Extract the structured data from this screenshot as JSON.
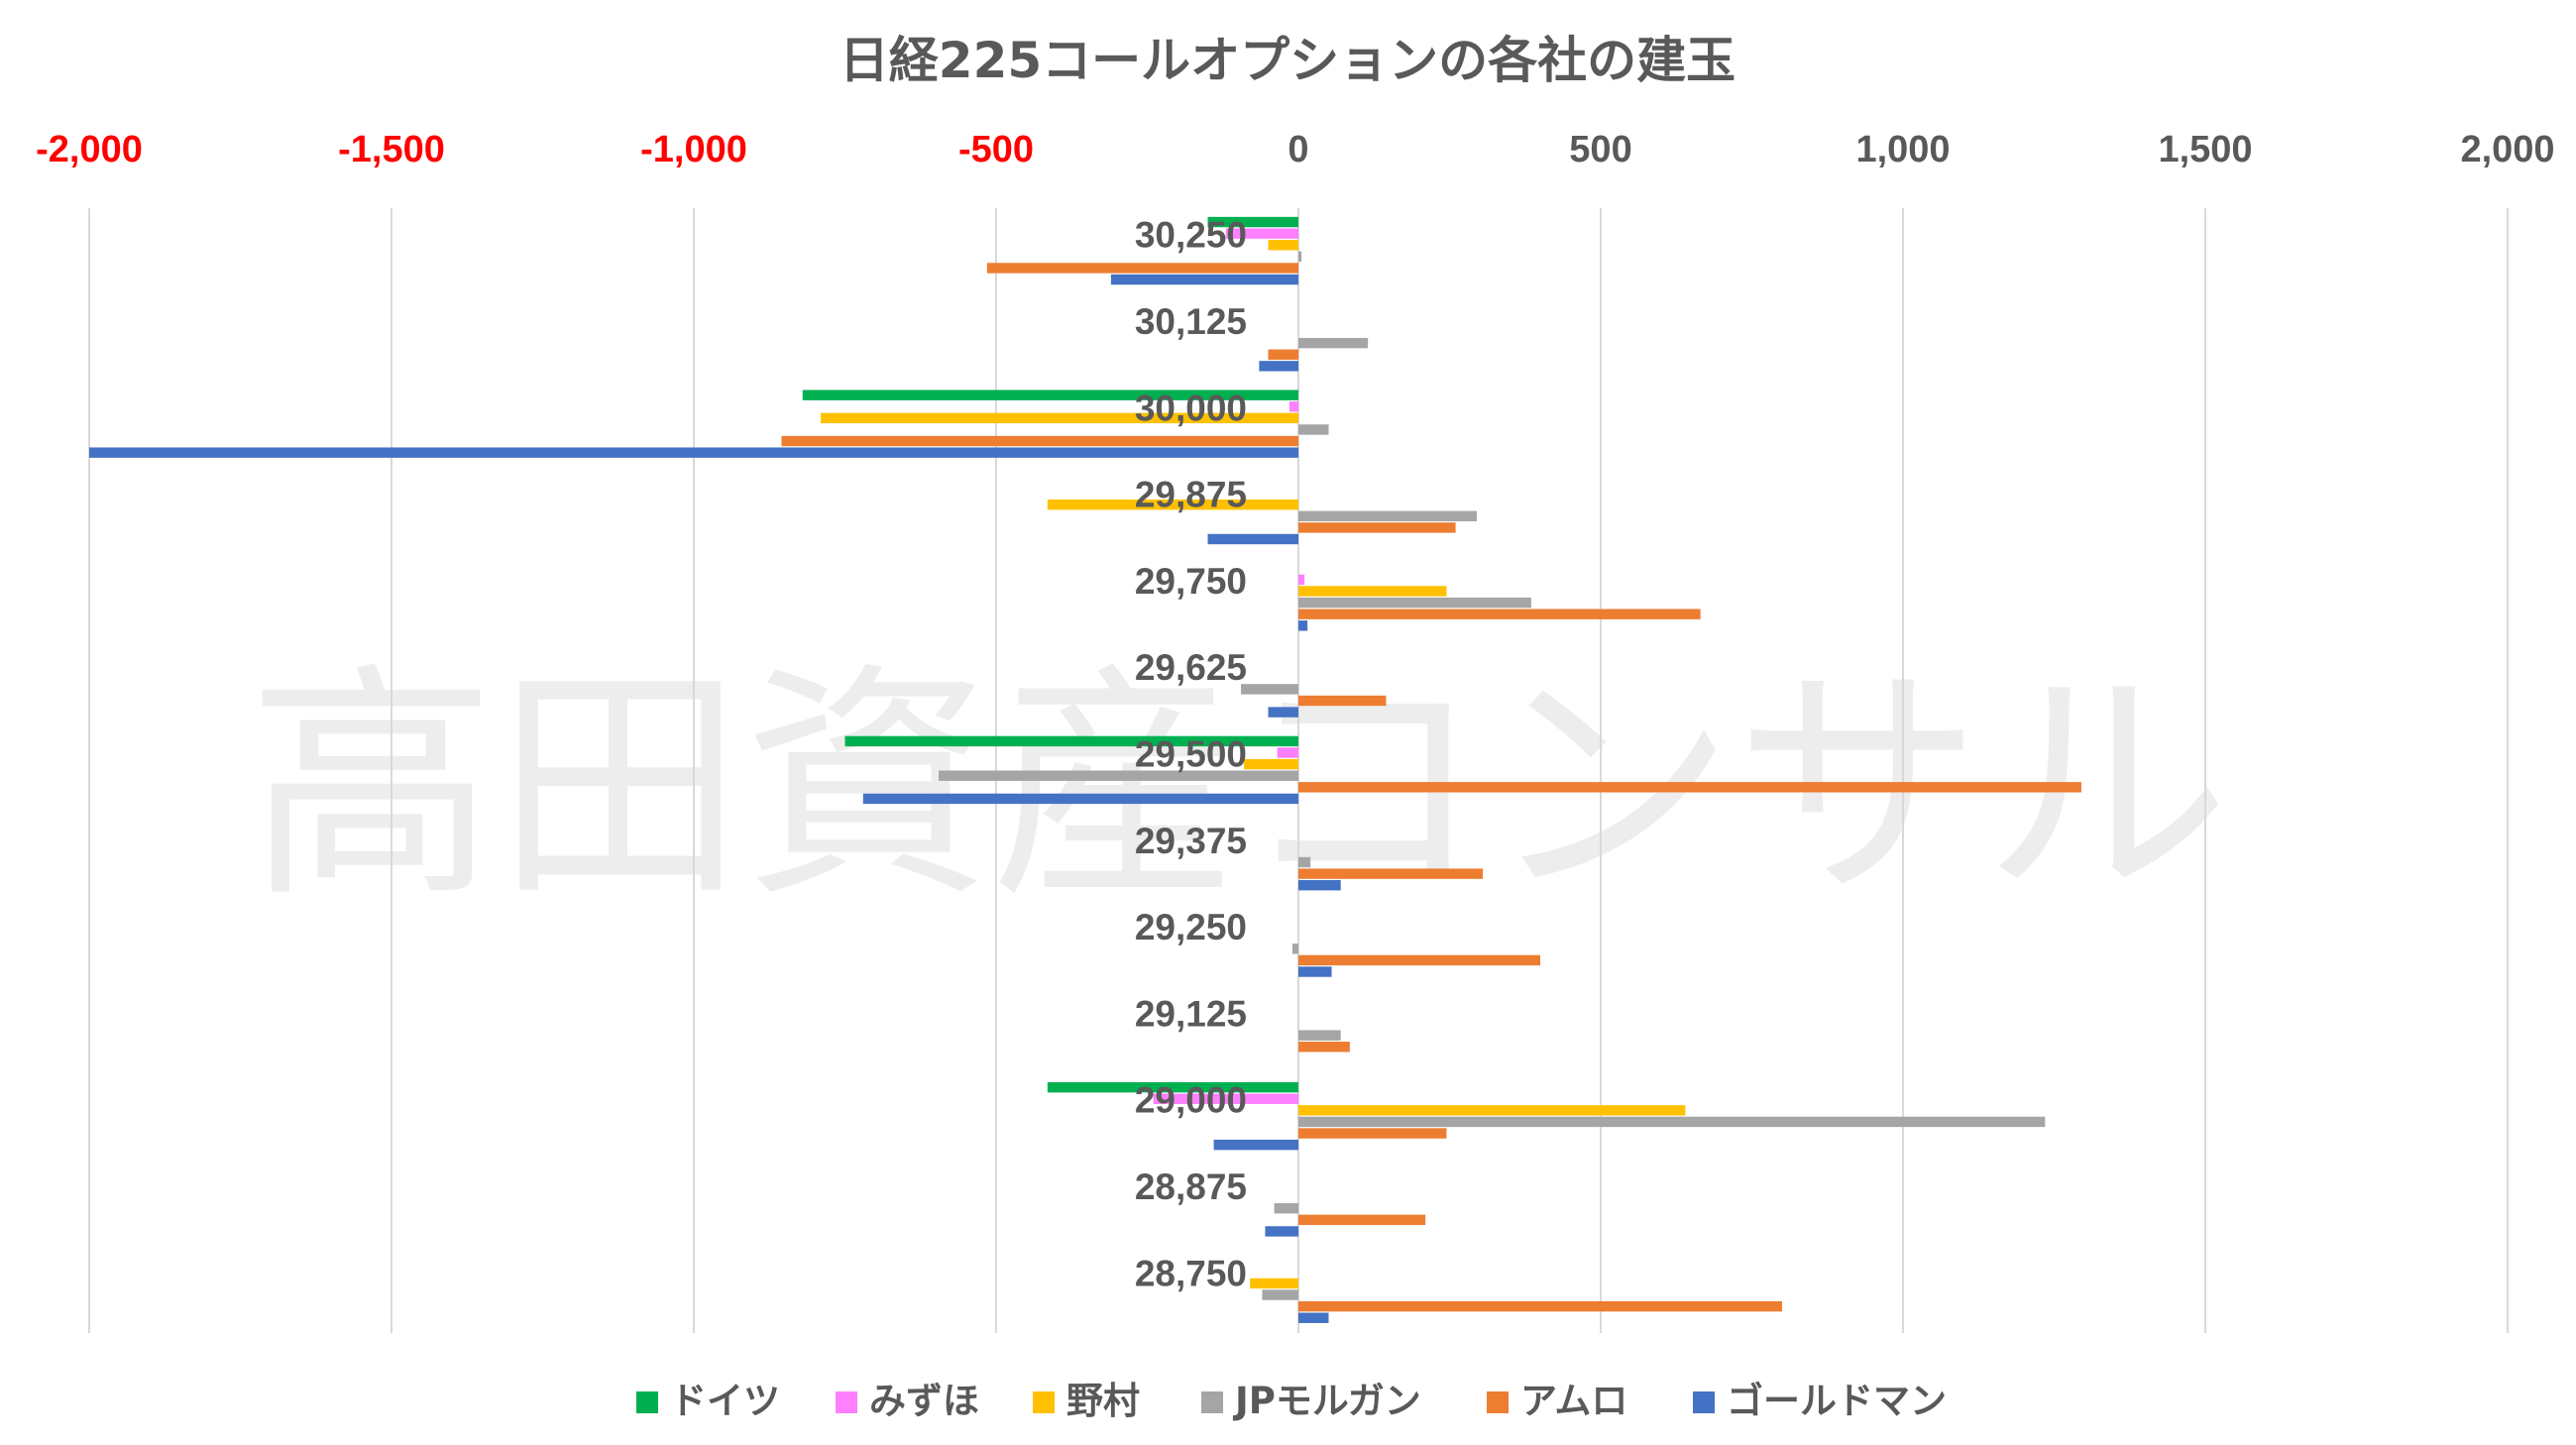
{
  "watermark": "高田資産コンサル",
  "chart_data": {
    "type": "bar",
    "orientation": "horizontal",
    "title": "日経225コールオプションの各社の建玉",
    "categories": [
      "30,250",
      "30,125",
      "30,000",
      "29,875",
      "29,750",
      "29,625",
      "29,500",
      "29,375",
      "29,250",
      "29,125",
      "29,000",
      "28,875",
      "28,750"
    ],
    "xlim": [
      -2000,
      2000
    ],
    "xticks": [
      {
        "value": -2000,
        "label": "-2,000"
      },
      {
        "value": -1500,
        "label": "-1,500"
      },
      {
        "value": -1000,
        "label": "-1,000"
      },
      {
        "value": -500,
        "label": "-500"
      },
      {
        "value": 0,
        "label": "0"
      },
      {
        "value": 500,
        "label": "500"
      },
      {
        "value": 1000,
        "label": "1,000"
      },
      {
        "value": 1500,
        "label": "1,500"
      },
      {
        "value": 2000,
        "label": "2,000"
      }
    ],
    "negative_tick_color": "#ff0000",
    "positive_tick_color": "#595959",
    "grid": true,
    "legend_position": "bottom",
    "series": [
      {
        "name": "ドイツ",
        "color": "#00b050",
        "values": [
          -150,
          0,
          -820,
          0,
          0,
          0,
          -750,
          0,
          0,
          0,
          -415,
          0,
          0
        ]
      },
      {
        "name": "みずほ",
        "color": "#ff80ff",
        "values": [
          -120,
          0,
          -15,
          0,
          10,
          0,
          -35,
          0,
          0,
          0,
          -240,
          0,
          0
        ]
      },
      {
        "name": "野村",
        "color": "#ffc000",
        "values": [
          -50,
          0,
          -790,
          -415,
          245,
          0,
          -90,
          0,
          0,
          0,
          640,
          0,
          -80
        ]
      },
      {
        "name": "JPモルガン",
        "color": "#a5a5a5",
        "values": [
          5,
          115,
          50,
          295,
          385,
          -95,
          -595,
          20,
          -10,
          70,
          1235,
          -40,
          -60
        ]
      },
      {
        "name": "アムロ",
        "color": "#ed7d31",
        "values": [
          -515,
          -50,
          -855,
          260,
          665,
          145,
          1295,
          305,
          400,
          85,
          245,
          210,
          800
        ]
      },
      {
        "name": "ゴールドマン",
        "color": "#4472c4",
        "values": [
          -310,
          -65,
          -2000,
          -150,
          15,
          -50,
          -720,
          70,
          55,
          0,
          -140,
          -55,
          50
        ]
      }
    ]
  }
}
